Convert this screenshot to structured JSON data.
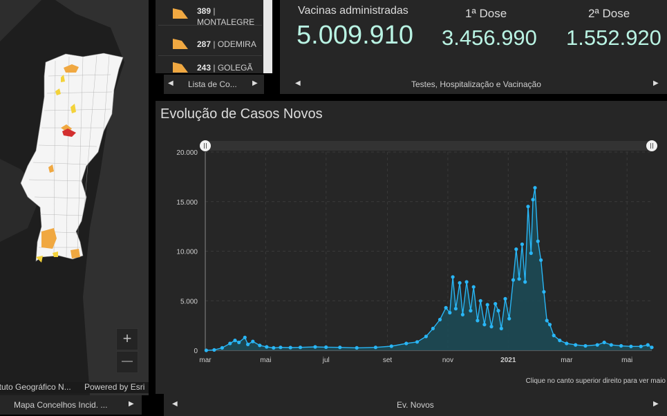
{
  "map": {
    "attribution_left": "ituto Geográfico N...",
    "attribution_right": "Powered by Esri",
    "zoom_in": "+",
    "zoom_out": "—",
    "footer_label": "Mapa Concelhos Incid. ..."
  },
  "list": {
    "items": [
      {
        "value": "389",
        "name": "MONTALEGRE"
      },
      {
        "value": "287",
        "name": "ODEMIRA"
      },
      {
        "value": "243",
        "name": "GOLEGÃ"
      }
    ],
    "footer_label": "Lista de Co..."
  },
  "vaccines": {
    "administered_label": "Vacinas administradas",
    "administered_value": "5.009.910",
    "dose1_label": "1ª Dose",
    "dose1_value": "3.456.990",
    "dose2_label": "2ª Dose",
    "dose2_value": "1.552.920",
    "footer_label": "Testes, Hospitalização e Vacinação"
  },
  "chart": {
    "title": "Evolução de Casos Novos",
    "note": "Clique no canto superior direito para ver maio",
    "footer_label": "Ev. Novos"
  },
  "colors": {
    "line": "#29b6f6",
    "area": "#1d4a55",
    "map_orange": "#f0a841",
    "map_yellow": "#f3d23a",
    "map_red": "#d32f2f",
    "vaccine_value": "#b9f3e3"
  },
  "chart_data": {
    "type": "area",
    "title": "Evolução de Casos Novos",
    "xlabel": "",
    "ylabel": "",
    "ylim": [
      0,
      20000
    ],
    "y_ticks": [
      "0",
      "5.000",
      "10.000",
      "15.000",
      "20.000"
    ],
    "x_ticks": [
      "mar",
      "mai",
      "jul",
      "set",
      "nov",
      "2021",
      "mar",
      "mai"
    ],
    "x_tick_dates": [
      "2020-03-01",
      "2020-05-01",
      "2020-07-01",
      "2020-09-01",
      "2020-11-01",
      "2021-01-01",
      "2021-03-01",
      "2021-05-01"
    ],
    "grid": true,
    "series": [
      {
        "values": [
          {
            "date": "2020-03-02",
            "value": 0
          },
          {
            "date": "2020-03-10",
            "value": 40
          },
          {
            "date": "2020-03-18",
            "value": 250
          },
          {
            "date": "2020-03-26",
            "value": 700
          },
          {
            "date": "2020-03-31",
            "value": 1000
          },
          {
            "date": "2020-04-04",
            "value": 800
          },
          {
            "date": "2020-04-10",
            "value": 1300
          },
          {
            "date": "2020-04-13",
            "value": 600
          },
          {
            "date": "2020-04-18",
            "value": 900
          },
          {
            "date": "2020-04-25",
            "value": 500
          },
          {
            "date": "2020-05-02",
            "value": 350
          },
          {
            "date": "2020-05-09",
            "value": 250
          },
          {
            "date": "2020-05-16",
            "value": 300
          },
          {
            "date": "2020-05-26",
            "value": 280
          },
          {
            "date": "2020-06-05",
            "value": 300
          },
          {
            "date": "2020-06-20",
            "value": 350
          },
          {
            "date": "2020-07-01",
            "value": 320
          },
          {
            "date": "2020-07-15",
            "value": 300
          },
          {
            "date": "2020-08-01",
            "value": 250
          },
          {
            "date": "2020-08-20",
            "value": 300
          },
          {
            "date": "2020-09-05",
            "value": 420
          },
          {
            "date": "2020-09-20",
            "value": 700
          },
          {
            "date": "2020-10-01",
            "value": 850
          },
          {
            "date": "2020-10-10",
            "value": 1400
          },
          {
            "date": "2020-10-17",
            "value": 2200
          },
          {
            "date": "2020-10-24",
            "value": 3100
          },
          {
            "date": "2020-10-30",
            "value": 4300
          },
          {
            "date": "2020-11-03",
            "value": 3800
          },
          {
            "date": "2020-11-06",
            "value": 7400
          },
          {
            "date": "2020-11-09",
            "value": 4200
          },
          {
            "date": "2020-11-13",
            "value": 6800
          },
          {
            "date": "2020-11-16",
            "value": 3600
          },
          {
            "date": "2020-11-20",
            "value": 6900
          },
          {
            "date": "2020-11-24",
            "value": 4000
          },
          {
            "date": "2020-11-27",
            "value": 6400
          },
          {
            "date": "2020-12-01",
            "value": 3000
          },
          {
            "date": "2020-12-04",
            "value": 5000
          },
          {
            "date": "2020-12-08",
            "value": 2600
          },
          {
            "date": "2020-12-11",
            "value": 4600
          },
          {
            "date": "2020-12-15",
            "value": 2400
          },
          {
            "date": "2020-12-19",
            "value": 4700
          },
          {
            "date": "2020-12-22",
            "value": 4000
          },
          {
            "date": "2020-12-25",
            "value": 2200
          },
          {
            "date": "2020-12-29",
            "value": 5200
          },
          {
            "date": "2021-01-02",
            "value": 3200
          },
          {
            "date": "2021-01-06",
            "value": 7100
          },
          {
            "date": "2021-01-09",
            "value": 10200
          },
          {
            "date": "2021-01-12",
            "value": 7200
          },
          {
            "date": "2021-01-15",
            "value": 10700
          },
          {
            "date": "2021-01-18",
            "value": 6900
          },
          {
            "date": "2021-01-21",
            "value": 14500
          },
          {
            "date": "2021-01-24",
            "value": 9800
          },
          {
            "date": "2021-01-26",
            "value": 15200
          },
          {
            "date": "2021-01-28",
            "value": 16400
          },
          {
            "date": "2021-01-31",
            "value": 11000
          },
          {
            "date": "2021-02-03",
            "value": 9100
          },
          {
            "date": "2021-02-06",
            "value": 5900
          },
          {
            "date": "2021-02-09",
            "value": 3000
          },
          {
            "date": "2021-02-12",
            "value": 2600
          },
          {
            "date": "2021-02-16",
            "value": 1500
          },
          {
            "date": "2021-02-22",
            "value": 1000
          },
          {
            "date": "2021-03-01",
            "value": 700
          },
          {
            "date": "2021-03-10",
            "value": 550
          },
          {
            "date": "2021-03-20",
            "value": 450
          },
          {
            "date": "2021-04-01",
            "value": 550
          },
          {
            "date": "2021-04-08",
            "value": 800
          },
          {
            "date": "2021-04-15",
            "value": 550
          },
          {
            "date": "2021-04-25",
            "value": 450
          },
          {
            "date": "2021-05-05",
            "value": 400
          },
          {
            "date": "2021-05-15",
            "value": 400
          },
          {
            "date": "2021-05-22",
            "value": 550
          },
          {
            "date": "2021-05-26",
            "value": 300
          }
        ]
      }
    ]
  }
}
